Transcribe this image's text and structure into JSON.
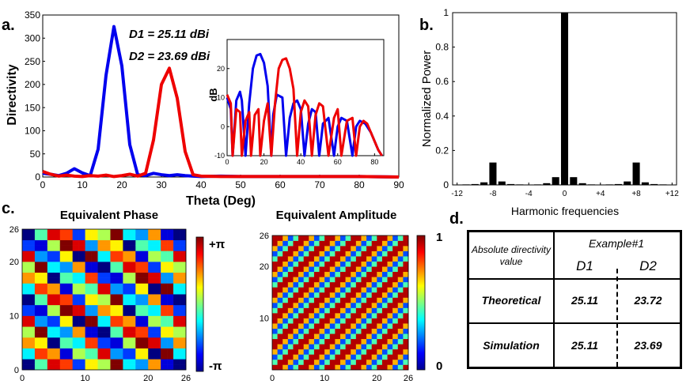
{
  "panel_labels": {
    "a": "a.",
    "b": "b.",
    "c": "c.",
    "d": "d."
  },
  "chart_data": [
    {
      "id": "a_main",
      "type": "line",
      "title": "",
      "xlabel": "Theta (Deg)",
      "ylabel": "Directivity",
      "xlim": [
        0,
        90
      ],
      "ylim": [
        0,
        350
      ],
      "xticks": [
        "0",
        "10",
        "20",
        "30",
        "40",
        "50",
        "60",
        "70",
        "80",
        "90"
      ],
      "yticks": [
        "0",
        "50",
        "100",
        "150",
        "200",
        "250",
        "300",
        "350"
      ],
      "annotations": [
        "D1 = 25.11 dBi",
        "D2 = 23.69 dBi"
      ],
      "series": [
        {
          "name": "D1",
          "color": "#0000ee",
          "x": [
            0,
            2,
            4,
            6,
            8,
            10,
            12,
            14,
            16,
            18,
            20,
            22,
            24,
            26,
            28,
            30,
            32,
            34,
            36,
            38,
            40,
            45,
            50,
            60,
            70,
            80,
            90
          ],
          "y": [
            8,
            6,
            3,
            8,
            18,
            9,
            3,
            60,
            220,
            325,
            240,
            70,
            5,
            3,
            8,
            5,
            3,
            5,
            3,
            2,
            1,
            2,
            1,
            1,
            1,
            1,
            0
          ]
        },
        {
          "name": "D2",
          "color": "#ee0000",
          "x": [
            0,
            2,
            4,
            6,
            8,
            10,
            12,
            14,
            16,
            18,
            20,
            22,
            24,
            26,
            28,
            30,
            32,
            34,
            36,
            38,
            40,
            45,
            50,
            60,
            70,
            80,
            90
          ],
          "y": [
            12,
            6,
            2,
            4,
            2,
            1,
            3,
            2,
            4,
            1,
            3,
            6,
            2,
            8,
            80,
            200,
            235,
            170,
            55,
            5,
            2,
            1,
            1,
            1,
            1,
            1,
            0
          ]
        }
      ]
    },
    {
      "id": "a_inset",
      "type": "line",
      "xlabel": "",
      "ylabel": "dB",
      "xlim": [
        0,
        85
      ],
      "ylim": [
        -10,
        30
      ],
      "xticks": [
        "0",
        "20",
        "40",
        "60",
        "80"
      ],
      "yticks": [
        "-10",
        "0",
        "10",
        "20"
      ],
      "series": [
        {
          "name": "D1",
          "color": "#0000ee",
          "x": [
            0,
            2,
            3,
            5,
            7,
            8,
            10,
            12,
            14,
            16,
            18,
            20,
            22,
            24,
            25,
            27,
            30,
            32,
            34,
            36,
            38,
            40,
            42,
            44,
            46,
            48,
            50,
            52,
            55,
            58,
            60,
            62,
            65,
            68,
            70,
            72,
            75,
            78,
            80,
            82,
            84
          ],
          "y": [
            10,
            6,
            -10,
            9,
            12,
            9,
            -10,
            8,
            20,
            24.5,
            25,
            22,
            14,
            -10,
            4,
            11,
            10,
            -10,
            3,
            8,
            9,
            6,
            -10,
            1,
            6,
            5,
            -10,
            1,
            3,
            -10,
            0,
            3,
            2,
            -10,
            0,
            2,
            1,
            -2,
            -5,
            -8,
            -10
          ]
        },
        {
          "name": "D2",
          "color": "#ee0000",
          "x": [
            0,
            2,
            3,
            5,
            7,
            8,
            10,
            12,
            13,
            15,
            17,
            18,
            20,
            22,
            24,
            26,
            28,
            30,
            32,
            34,
            36,
            38,
            40,
            42,
            44,
            46,
            48,
            50,
            52,
            55,
            58,
            60,
            62,
            65,
            68,
            70,
            72,
            74,
            76,
            78,
            80,
            82,
            84
          ],
          "y": [
            11,
            8,
            -10,
            6,
            5,
            -10,
            2,
            5,
            -10,
            4,
            6,
            -10,
            2,
            8,
            -10,
            8,
            20,
            23,
            23.5,
            20,
            13,
            -10,
            5,
            9,
            7,
            -10,
            4,
            8,
            7,
            -10,
            3,
            6,
            -10,
            2,
            3,
            -10,
            0,
            2,
            1,
            -2,
            -5,
            -8,
            -10
          ]
        }
      ]
    },
    {
      "id": "b_bar",
      "type": "bar",
      "xlabel": "Harmonic frequencies",
      "ylabel": "Normalized Power",
      "xlim": [
        -12.5,
        12.5
      ],
      "ylim": [
        0,
        1
      ],
      "xtick_values": [
        -12,
        -8,
        -4,
        0,
        4,
        8,
        12
      ],
      "xticks": [
        "-12",
        "-8",
        "-4",
        "0",
        "+4",
        "+8",
        "+12"
      ],
      "yticks": [
        "0",
        "0.2",
        "0.4",
        "0.6",
        "0.8",
        "1"
      ],
      "categories": [
        -12,
        -11,
        -10,
        -9,
        -8,
        -7,
        -6,
        -5,
        -4,
        -3,
        -2,
        -1,
        0,
        1,
        2,
        3,
        4,
        5,
        6,
        7,
        8,
        9,
        10,
        11,
        12
      ],
      "values": [
        0,
        0.003,
        0.005,
        0.015,
        0.13,
        0.02,
        0.005,
        0.003,
        0.002,
        0.003,
        0.01,
        0.045,
        1.0,
        0.045,
        0.01,
        0.003,
        0.002,
        0.003,
        0.005,
        0.02,
        0.13,
        0.015,
        0.005,
        0.003,
        0
      ]
    },
    {
      "id": "c_phase",
      "type": "heatmap",
      "title": "Equivalent Phase",
      "xticks": [
        "0",
        "10",
        "20",
        "26"
      ],
      "yticks": [
        "0",
        "10",
        "20",
        "26"
      ],
      "colorbar_labels": [
        "+π",
        "-π"
      ],
      "grid_size": 26
    },
    {
      "id": "c_amp",
      "type": "heatmap",
      "title": "Equivalent Amplitude",
      "xticks": [
        "0",
        "10",
        "20",
        "26"
      ],
      "yticks": [
        "10",
        "20",
        "26"
      ],
      "colorbar_labels": [
        "1",
        "0"
      ],
      "grid_size": 26
    }
  ],
  "table": {
    "header_left": "Absolute directivity value",
    "header_group": "Example#1",
    "col1": "D1",
    "col2": "D2",
    "rows": [
      {
        "label": "Theoretical",
        "d1": "25.11",
        "d2": "23.72"
      },
      {
        "label": "Simulation",
        "d1": "25.11",
        "d2": "23.69"
      }
    ]
  }
}
